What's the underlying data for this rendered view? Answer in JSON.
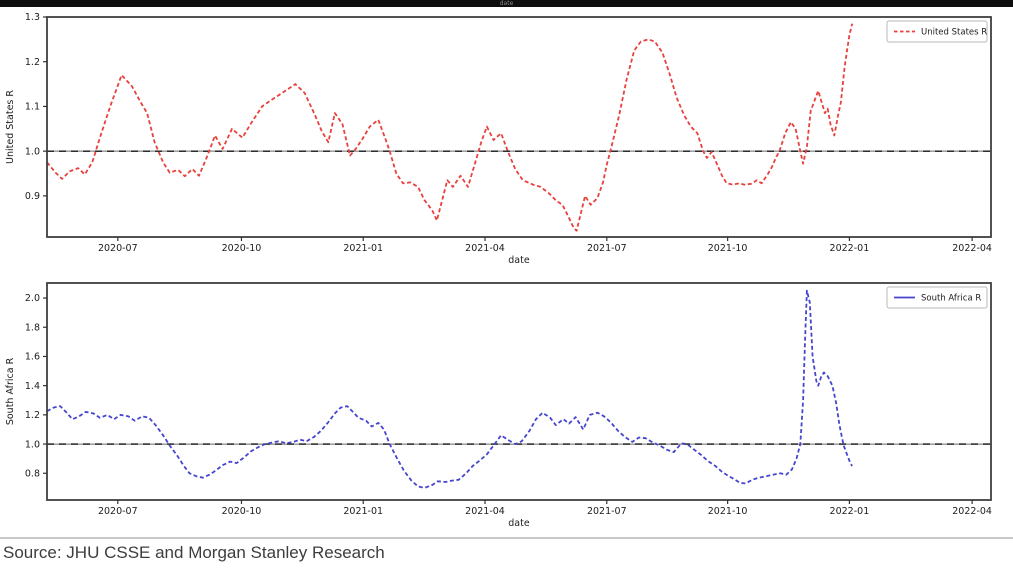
{
  "top_strip": {
    "label": "date"
  },
  "footer": {
    "source": "Source: JHU CSSE and Morgan Stanley Research"
  },
  "chart_data": {
    "type": "line",
    "x_domain": [
      "2020-05-08",
      "2022-04-20"
    ],
    "grid": false,
    "charts": [
      {
        "id": "us",
        "ylabel": "United States R",
        "xlabel": "date",
        "legend": {
          "label": "United States R",
          "position": "upper right",
          "sample": "dashed"
        },
        "color": "#e8413d",
        "baseline_color": "#3c3c3c",
        "line_style": "dashed",
        "ylim": [
          0.808,
          1.3
        ],
        "yticks": [
          0.9,
          1.0,
          1.1,
          1.2,
          1.3
        ],
        "baseline": 1.0,
        "xticks": [
          {
            "label": "2020-07",
            "f": 0.075
          },
          {
            "label": "2020-10",
            "f": 0.206
          },
          {
            "label": "2021-01",
            "f": 0.335
          },
          {
            "label": "2021-04",
            "f": 0.464
          },
          {
            "label": "2021-07",
            "f": 0.593
          },
          {
            "label": "2021-10",
            "f": 0.721
          },
          {
            "label": "2022-01",
            "f": 0.85
          },
          {
            "label": "2022-04",
            "f": 0.98
          }
        ],
        "points": [
          [
            0.0,
            0.975
          ],
          [
            0.009,
            0.952
          ],
          [
            0.016,
            0.938
          ],
          [
            0.024,
            0.955
          ],
          [
            0.033,
            0.962
          ],
          [
            0.04,
            0.948
          ],
          [
            0.048,
            0.975
          ],
          [
            0.056,
            1.03
          ],
          [
            0.067,
            1.1
          ],
          [
            0.079,
            1.17
          ],
          [
            0.09,
            1.145
          ],
          [
            0.099,
            1.11
          ],
          [
            0.106,
            1.085
          ],
          [
            0.114,
            1.02
          ],
          [
            0.123,
            0.975
          ],
          [
            0.13,
            0.952
          ],
          [
            0.139,
            0.958
          ],
          [
            0.146,
            0.944
          ],
          [
            0.154,
            0.96
          ],
          [
            0.161,
            0.945
          ],
          [
            0.17,
            0.99
          ],
          [
            0.178,
            1.035
          ],
          [
            0.186,
            1.005
          ],
          [
            0.196,
            1.05
          ],
          [
            0.207,
            1.03
          ],
          [
            0.217,
            1.065
          ],
          [
            0.228,
            1.1
          ],
          [
            0.238,
            1.115
          ],
          [
            0.249,
            1.13
          ],
          [
            0.263,
            1.15
          ],
          [
            0.273,
            1.13
          ],
          [
            0.284,
            1.08
          ],
          [
            0.291,
            1.045
          ],
          [
            0.298,
            1.02
          ],
          [
            0.305,
            1.085
          ],
          [
            0.313,
            1.06
          ],
          [
            0.321,
            0.99
          ],
          [
            0.327,
            1.005
          ],
          [
            0.335,
            1.03
          ],
          [
            0.342,
            1.055
          ],
          [
            0.351,
            1.07
          ],
          [
            0.358,
            1.03
          ],
          [
            0.363,
            1.0
          ],
          [
            0.37,
            0.95
          ],
          [
            0.377,
            0.928
          ],
          [
            0.385,
            0.93
          ],
          [
            0.393,
            0.92
          ],
          [
            0.4,
            0.89
          ],
          [
            0.408,
            0.868
          ],
          [
            0.413,
            0.845
          ],
          [
            0.424,
            0.935
          ],
          [
            0.43,
            0.92
          ],
          [
            0.438,
            0.945
          ],
          [
            0.446,
            0.92
          ],
          [
            0.453,
            0.97
          ],
          [
            0.46,
            1.02
          ],
          [
            0.466,
            1.055
          ],
          [
            0.473,
            1.025
          ],
          [
            0.481,
            1.04
          ],
          [
            0.488,
            1.0
          ],
          [
            0.496,
            0.96
          ],
          [
            0.504,
            0.935
          ],
          [
            0.515,
            0.925
          ],
          [
            0.523,
            0.92
          ],
          [
            0.532,
            0.905
          ],
          [
            0.539,
            0.89
          ],
          [
            0.546,
            0.88
          ],
          [
            0.552,
            0.855
          ],
          [
            0.558,
            0.828
          ],
          [
            0.561,
            0.822
          ],
          [
            0.57,
            0.9
          ],
          [
            0.576,
            0.88
          ],
          [
            0.583,
            0.895
          ],
          [
            0.589,
            0.93
          ],
          [
            0.593,
            0.97
          ],
          [
            0.598,
            1.01
          ],
          [
            0.606,
            1.08
          ],
          [
            0.614,
            1.16
          ],
          [
            0.622,
            1.225
          ],
          [
            0.629,
            1.245
          ],
          [
            0.637,
            1.25
          ],
          [
            0.644,
            1.245
          ],
          [
            0.652,
            1.22
          ],
          [
            0.66,
            1.17
          ],
          [
            0.667,
            1.12
          ],
          [
            0.675,
            1.08
          ],
          [
            0.682,
            1.055
          ],
          [
            0.689,
            1.04
          ],
          [
            0.695,
            1.0
          ],
          [
            0.699,
            0.985
          ],
          [
            0.704,
            0.998
          ],
          [
            0.71,
            0.97
          ],
          [
            0.715,
            0.945
          ],
          [
            0.72,
            0.928
          ],
          [
            0.727,
            0.925
          ],
          [
            0.733,
            0.928
          ],
          [
            0.739,
            0.925
          ],
          [
            0.746,
            0.927
          ],
          [
            0.752,
            0.935
          ],
          [
            0.757,
            0.928
          ],
          [
            0.764,
            0.95
          ],
          [
            0.768,
            0.965
          ],
          [
            0.772,
            0.985
          ],
          [
            0.776,
            1.0
          ],
          [
            0.782,
            1.04
          ],
          [
            0.788,
            1.065
          ],
          [
            0.793,
            1.05
          ],
          [
            0.798,
            1.0
          ],
          [
            0.801,
            0.972
          ],
          [
            0.805,
            1.01
          ],
          [
            0.809,
            1.09
          ],
          [
            0.817,
            1.135
          ],
          [
            0.824,
            1.085
          ],
          [
            0.827,
            1.095
          ],
          [
            0.83,
            1.06
          ],
          [
            0.834,
            1.035
          ],
          [
            0.838,
            1.08
          ],
          [
            0.841,
            1.11
          ],
          [
            0.845,
            1.19
          ],
          [
            0.85,
            1.26
          ],
          [
            0.853,
            1.285
          ]
        ]
      },
      {
        "id": "sa",
        "ylabel": "South Africa R",
        "xlabel": "date",
        "legend": {
          "label": "South Africa R",
          "position": "upper right",
          "sample": "solid"
        },
        "color": "#4545cf",
        "baseline_color": "#3c3c3c",
        "line_style": "dashed",
        "ylim": [
          0.617,
          2.103
        ],
        "yticks": [
          0.8,
          1.0,
          1.2,
          1.4,
          1.6,
          1.8,
          2.0
        ],
        "baseline": 1.0,
        "xticks": [
          {
            "label": "2020-07",
            "f": 0.075
          },
          {
            "label": "2020-10",
            "f": 0.206
          },
          {
            "label": "2021-01",
            "f": 0.335
          },
          {
            "label": "2021-04",
            "f": 0.464
          },
          {
            "label": "2021-07",
            "f": 0.593
          },
          {
            "label": "2021-10",
            "f": 0.721
          },
          {
            "label": "2022-01",
            "f": 0.85
          },
          {
            "label": "2022-04",
            "f": 0.98
          }
        ],
        "points": [
          [
            0.0,
            1.225
          ],
          [
            0.007,
            1.25
          ],
          [
            0.014,
            1.26
          ],
          [
            0.02,
            1.22
          ],
          [
            0.027,
            1.17
          ],
          [
            0.034,
            1.19
          ],
          [
            0.041,
            1.22
          ],
          [
            0.049,
            1.21
          ],
          [
            0.056,
            1.18
          ],
          [
            0.064,
            1.2
          ],
          [
            0.071,
            1.17
          ],
          [
            0.078,
            1.2
          ],
          [
            0.086,
            1.19
          ],
          [
            0.093,
            1.16
          ],
          [
            0.101,
            1.19
          ],
          [
            0.108,
            1.18
          ],
          [
            0.115,
            1.13
          ],
          [
            0.123,
            1.06
          ],
          [
            0.13,
            0.99
          ],
          [
            0.138,
            0.92
          ],
          [
            0.145,
            0.85
          ],
          [
            0.151,
            0.8
          ],
          [
            0.158,
            0.78
          ],
          [
            0.165,
            0.77
          ],
          [
            0.172,
            0.79
          ],
          [
            0.179,
            0.82
          ],
          [
            0.186,
            0.855
          ],
          [
            0.194,
            0.88
          ],
          [
            0.201,
            0.87
          ],
          [
            0.209,
            0.91
          ],
          [
            0.216,
            0.95
          ],
          [
            0.224,
            0.98
          ],
          [
            0.231,
            1.0
          ],
          [
            0.238,
            1.01
          ],
          [
            0.246,
            1.02
          ],
          [
            0.253,
            1.005
          ],
          [
            0.261,
            1.015
          ],
          [
            0.268,
            1.03
          ],
          [
            0.275,
            1.02
          ],
          [
            0.283,
            1.05
          ],
          [
            0.29,
            1.09
          ],
          [
            0.298,
            1.15
          ],
          [
            0.305,
            1.21
          ],
          [
            0.311,
            1.25
          ],
          [
            0.318,
            1.26
          ],
          [
            0.324,
            1.22
          ],
          [
            0.33,
            1.18
          ],
          [
            0.338,
            1.16
          ],
          [
            0.344,
            1.12
          ],
          [
            0.351,
            1.145
          ],
          [
            0.357,
            1.1
          ],
          [
            0.363,
            1.0
          ],
          [
            0.371,
            0.9
          ],
          [
            0.378,
            0.82
          ],
          [
            0.386,
            0.75
          ],
          [
            0.393,
            0.71
          ],
          [
            0.4,
            0.7
          ],
          [
            0.408,
            0.72
          ],
          [
            0.414,
            0.745
          ],
          [
            0.422,
            0.74
          ],
          [
            0.429,
            0.75
          ],
          [
            0.436,
            0.755
          ],
          [
            0.444,
            0.8
          ],
          [
            0.451,
            0.85
          ],
          [
            0.459,
            0.89
          ],
          [
            0.466,
            0.93
          ],
          [
            0.473,
            0.99
          ],
          [
            0.481,
            1.06
          ],
          [
            0.488,
            1.03
          ],
          [
            0.496,
            1.0
          ],
          [
            0.503,
            1.02
          ],
          [
            0.511,
            1.09
          ],
          [
            0.518,
            1.17
          ],
          [
            0.525,
            1.215
          ],
          [
            0.533,
            1.18
          ],
          [
            0.539,
            1.13
          ],
          [
            0.547,
            1.17
          ],
          [
            0.553,
            1.14
          ],
          [
            0.56,
            1.185
          ],
          [
            0.568,
            1.1
          ],
          [
            0.575,
            1.2
          ],
          [
            0.583,
            1.215
          ],
          [
            0.59,
            1.19
          ],
          [
            0.597,
            1.15
          ],
          [
            0.605,
            1.09
          ],
          [
            0.612,
            1.05
          ],
          [
            0.62,
            1.015
          ],
          [
            0.627,
            1.045
          ],
          [
            0.634,
            1.04
          ],
          [
            0.642,
            1.01
          ],
          [
            0.649,
            0.99
          ],
          [
            0.657,
            0.96
          ],
          [
            0.664,
            0.945
          ],
          [
            0.672,
            1.005
          ],
          [
            0.678,
            1.0
          ],
          [
            0.685,
            0.965
          ],
          [
            0.693,
            0.925
          ],
          [
            0.7,
            0.885
          ],
          [
            0.708,
            0.85
          ],
          [
            0.715,
            0.81
          ],
          [
            0.721,
            0.785
          ],
          [
            0.728,
            0.76
          ],
          [
            0.734,
            0.735
          ],
          [
            0.74,
            0.73
          ],
          [
            0.747,
            0.755
          ],
          [
            0.754,
            0.77
          ],
          [
            0.762,
            0.78
          ],
          [
            0.769,
            0.79
          ],
          [
            0.777,
            0.8
          ],
          [
            0.783,
            0.79
          ],
          [
            0.789,
            0.825
          ],
          [
            0.794,
            0.9
          ],
          [
            0.798,
            1.0
          ],
          [
            0.801,
            1.3
          ],
          [
            0.803,
            1.7
          ],
          [
            0.805,
            2.05
          ],
          [
            0.808,
            1.97
          ],
          [
            0.811,
            1.6
          ],
          [
            0.815,
            1.43
          ],
          [
            0.817,
            1.4
          ],
          [
            0.82,
            1.46
          ],
          [
            0.823,
            1.49
          ],
          [
            0.827,
            1.465
          ],
          [
            0.832,
            1.4
          ],
          [
            0.836,
            1.28
          ],
          [
            0.839,
            1.15
          ],
          [
            0.841,
            1.08
          ],
          [
            0.844,
            0.99
          ],
          [
            0.848,
            0.92
          ],
          [
            0.851,
            0.87
          ],
          [
            0.853,
            0.85
          ]
        ]
      }
    ]
  }
}
